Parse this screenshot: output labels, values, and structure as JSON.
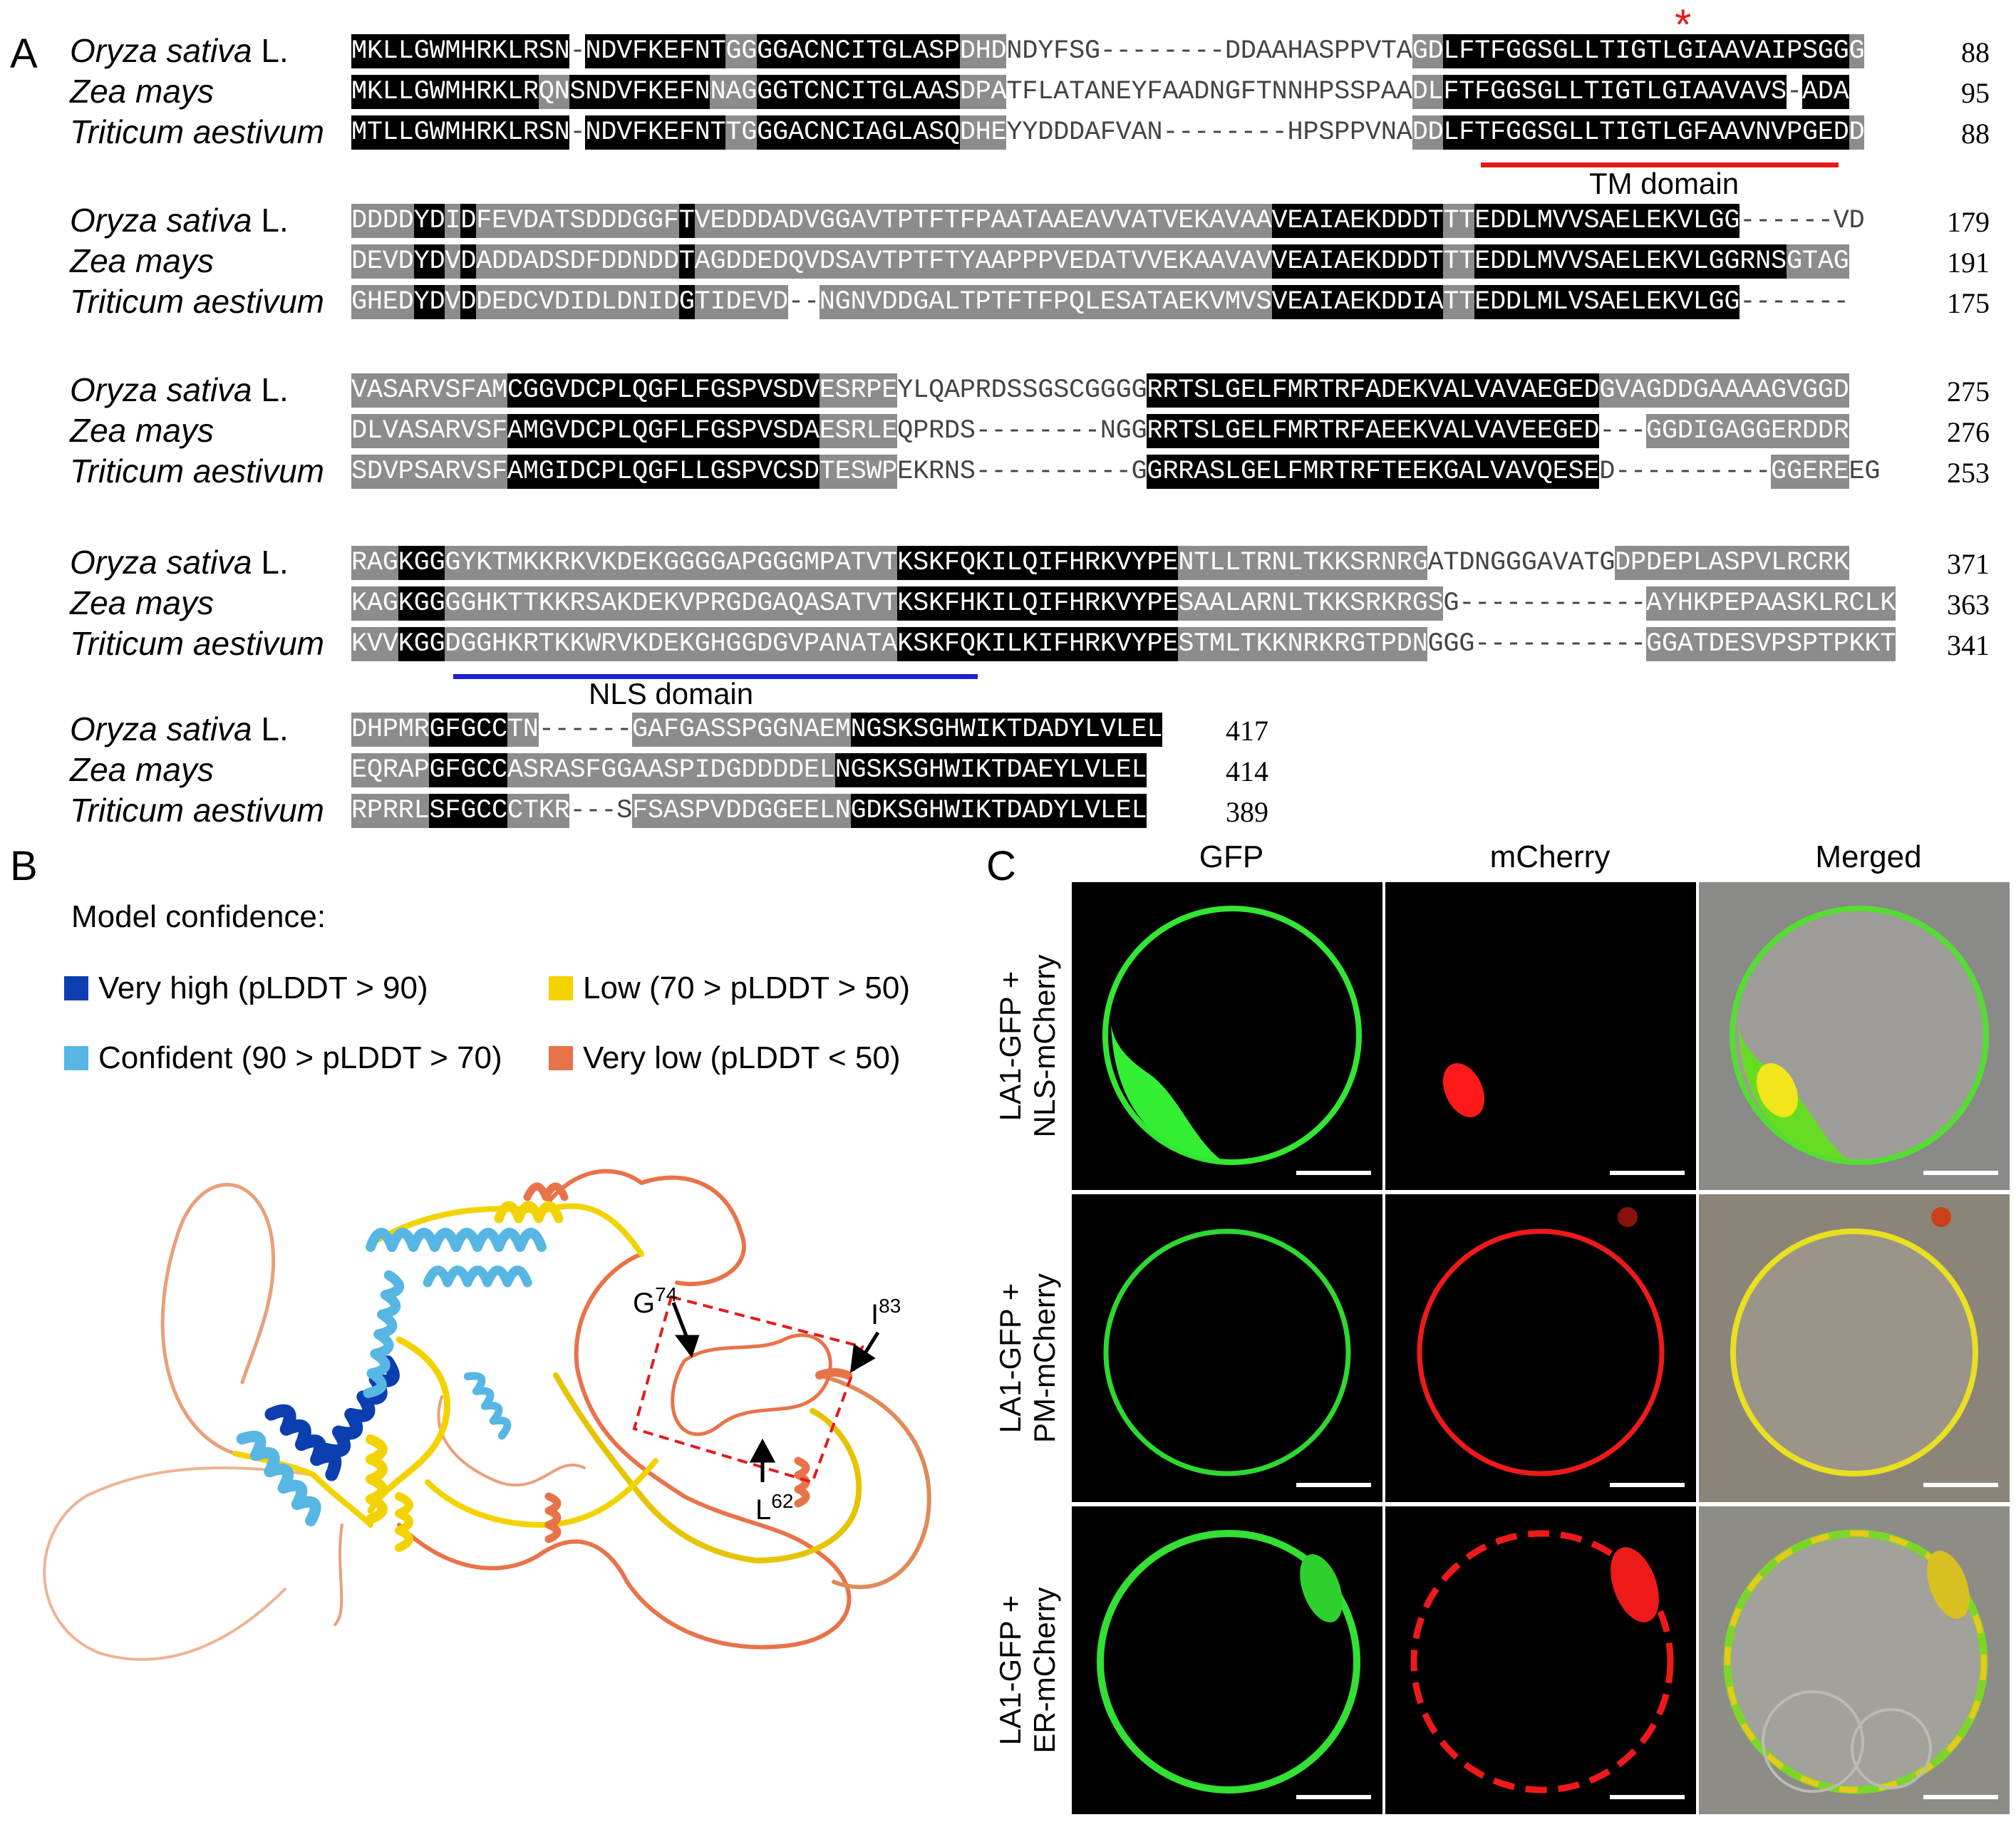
{
  "panel_labels": {
    "a": "A",
    "b": "B",
    "c": "C"
  },
  "alignment": {
    "species": [
      {
        "name": "Oryza sativa",
        "author": "L."
      },
      {
        "name": "Zea mays",
        "author": ""
      },
      {
        "name": "Triticum aestivum",
        "author": ""
      }
    ],
    "blocks": [
      {
        "rows": [
          {
            "seq": "MKLLGWMHRKLRSN-NDVFKEFNTGGGGACNCITGLASPDHDNDYFSG--------DDAAHASPPVTAGDLFTFGGSGLLTIGTLGIAAVAIPSGGG",
            "end": "88"
          },
          {
            "seq": "MKLLGWMHRKLRQNSNDVFKEFNNAGGGTCNCITGLAASDPATFLATANEYFAADNGFTNNHPSSPAADLFTFGGSGLLTIGTLGIAAVAVS-ADA",
            "end": "95"
          },
          {
            "seq": "MTLLGWMHRKLRSN-NDVFKEFNTTGGGACNCIAGLASQDHEYYDDDAFVAN--------HPSPPVNADDLFTFGGSGLLTIGTLGFAAVNVPGEDD",
            "end": "88"
          }
        ],
        "shade": [
          "bbbbbbbbbbbbbbwbbbbbbbbbggbbbbbbbbbbbbbgggwwwwwwwwwwwwwwwwwwwwwwwwwwggbbbbbbbbbbbbbbbbbbbbbbbbbbgggg",
          "bbbbbbbbbbbbggbbbbbbbbbgggbbbbbbbbbbbbbgggwwwwwwwwwwwwwwwwwwwwwwwwwwggbbbbbbbbbbbbbbbbbbbbbbbbbbgggg",
          "bbbbbbbbbbbbbbwbbbbbbbbbggbbbbbbbbbbbbbgggwwwwwwwwwwwwwwwwwwwwwwwwwwggbbbbbbbbbbbbbbbbbbbbbbbbbbgggg"
        ],
        "domain": {
          "label": "TM domain",
          "color": "#e41a1c"
        },
        "marker": "*"
      },
      {
        "rows": [
          {
            "seq": "DDDDYDIDFEVDATSDDDGGFTVEDDDADVGGAVTPTFTFPAATAAEAVVATVEKAVAAVEAIAEKDDDTTTEDDLMVVSAELEKVLGG------VD",
            "end": "179"
          },
          {
            "seq": "DEVDYDVDADDADSDFDDNDDTAGDDEDQVDSAVTPTFTYAAPPPVEDATVVEKAAVAVVEAIAEKDDDTTTEDDLMVVSAELEKVLGGRNSGTAG",
            "end": "191"
          },
          {
            "seq": "GHEDYDVDDEDCVDIDLDNIDGTIDEVD--NGNVDDGALTPTFTFPQLESATAEKVMVSVEAIAEKDDIATTEDDLMLVSAELEKVLGG-------",
            "end": "175"
          }
        ],
        "shade": [
          "ggggbbgbgggggggggggggbgggggggggggggggggggggggggggggggggggggbbbbbbbbbbbggbbbbbbbbbbbbbbbbbbbbwwwwwwgg",
          "ggggbbgbgggggggggggggbgggggggggggggggggggggggggggggggggggggbbbbbbbbbbbggbbbbbbbbbbbbbbbbbbbbgggggggg",
          "ggggbbgbgggggggggggggbgggggggggggggggggggggggggggggggggggggbbbbbbbbbbbggbbbbbbbbbbbbbbbbbbbbwwwwwwww"
        ]
      },
      {
        "rows": [
          {
            "seq": "VASARVSFAMCGGVDCPLQGFLFGSPVSDVESRPEYLQAPRDSSGSCGGGGRRTSLGELFMRTRFADEKVALVAVAEGEDGVAGDDGAAAAGVGGD",
            "end": "275"
          },
          {
            "seq": "DLVASARVSFAMGVDCPLQGFLFGSPVSDAESRLEQPRDS--------NGGRRTSLGELFMRTRFAEEKVALVAVEEGED---GGDIGAGGERDDR",
            "end": "276"
          },
          {
            "seq": "SDVPSARVSFAMGIDCPLQGFLLGSPVCSDTESWPEKRNS----------GGRRASLGELFMRTRFTEEKGALVAVQESED----------GGEREEG",
            "end": "253"
          }
        ],
        "shade": [
          "ggggggggggbbbbbbbbbbbbbbbbbbbbgggggwwwwwwwwwwwwwwwwbbbbbbbbbbbbbbbbbbbbbbbbbbbbbgggggggggggggggg",
          "ggggggggggbbbbbbbbbbbbbbbbbbbbgggggwwwwwwwwwwwwwwwwbbbbbbbbbbbbbbbbbbbbbbbbbbbbbgggggggggggggggg",
          "ggggggggggbbbbbbbbbbbbbbbbbbbbgggggwwwwwwwwwwwwwwwwbbbbbbbbbbbbbbbbbbbbbbbbbbbbbwwwwwwwwwwgggggg"
        ]
      },
      {
        "rows": [
          {
            "seq": "RAGKGGGYKTMKKRKVKDEKGGGGAPGGGMPATVTKSKFQKILQIFHRKVYPENTLLTRNLTKKSRNRGATDNGGGAVATGDPDEPLASPVLRCRK",
            "end": "371"
          },
          {
            "seq": "KAGKGGGGHKTTKKRSAKDEKVPRGDGAQASATVTKSKFHKILQIFHRKVYPESAALARNLTKKSRKRGSG------------AYHKPEPAASKLRCLK",
            "end": "363"
          },
          {
            "seq": "KVVKGGDGGHKRTKKWRVKDEKGHGGDGVPANATAKSKFQKILKIFHRKVYPESTMLTKKNRKRGTPDNGGG-----------GGATDESVPSPTPKKT",
            "end": "341"
          }
        ],
        "shade": [
          "gggbbbgggggggggggggggggggggggggggggbbbbbbbbbbbbbbbbbbggggggggggggggggwwwwwwwwwwwwgggggggggggggggggg",
          "gggbbbgggggggggggggggggggggggggggggbbbbbbbbbbbbbbbbbbgggggggggggggggggwwwwwwwwwwwwgggggggggggggggggg",
          "gggbbbgggggggggggggggggggggggggggggbbbbbbbbbbbbbbbbbbggggggggggggggggwwwwwwwwwwwwwgggggggggggggggggg"
        ],
        "domain": {
          "label": "NLS domain",
          "color": "#1f1fd6"
        }
      },
      {
        "rows": [
          {
            "seq": "DHPMRGFGCCTN------GAFGASSPGGNAEMNGSKSGHWIKTDADYLVLEL",
            "end": "417"
          },
          {
            "seq": "EQRAPGFGCCASRASFGGAASPIDGDDDDELNGSKSGHWIKTDAEYLVLEL",
            "end": "414"
          },
          {
            "seq": "RPRRLSFGCCCTKR---SFSASPVDDGGEELNGDKSGHWIKTDADYLVLEL",
            "end": "389"
          }
        ],
        "shade": [
          "gggggbbbbbggwwwwwwggggggggggggggbbbbbbbbbbbbbbbbbbbb",
          "gggggbbbbbgggggggggggggggggggggbbbbbbbbbbbbbbbbbbbbb",
          "gggggbbbbbgggggwwwggggggggggggggbbbbbbbbbbbbbbbbbbbb"
        ]
      }
    ]
  },
  "structure": {
    "legend_title": "Model confidence:",
    "legend": [
      {
        "label": "Very high (pLDDT > 90)",
        "color": "#0b3fb0"
      },
      {
        "label": "Low (70 > pLDDT > 50)",
        "color": "#f2d300"
      },
      {
        "label": "Confident (90 > pLDDT > 70)",
        "color": "#57b6e3"
      },
      {
        "label": "Very low (pLDDT < 50)",
        "color": "#e8734a"
      }
    ],
    "residues": [
      {
        "letter": "G",
        "number": "74"
      },
      {
        "letter": "I",
        "number": "83"
      },
      {
        "letter": "L",
        "number": "62"
      }
    ]
  },
  "microscopy": {
    "columns": [
      "GFP",
      "mCherry",
      "Merged"
    ],
    "rows": [
      {
        "line1": "LA1-GFP +",
        "line2": "NLS-mCherry"
      },
      {
        "line1": "LA1-GFP +",
        "line2": "PM-mCherry"
      },
      {
        "line1": "LA1-GFP +",
        "line2": "ER-mCherry"
      }
    ]
  }
}
